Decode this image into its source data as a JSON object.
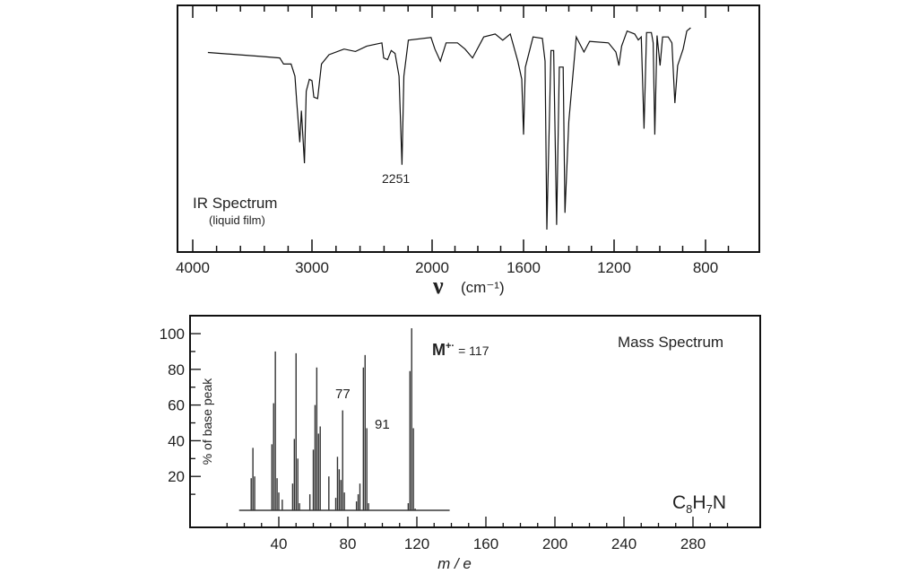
{
  "chart_data": [
    {
      "type": "line",
      "title": "IR Spectrum",
      "subtitle": "(liquid film)",
      "xlabel_symbol": "ν",
      "xlabel_unit": "(cm⁻¹)",
      "xlim": [
        4000,
        600
      ],
      "x_ticks": [
        4000,
        3000,
        2000,
        1600,
        1200,
        800
      ],
      "annotations": [
        {
          "text": "2251",
          "x": 2251
        }
      ],
      "grid": false,
      "series": [
        {
          "points": [
            [
              3873,
              80.9
            ],
            [
              3429,
              79.3
            ],
            [
              3270,
              78.7
            ],
            [
              3238,
              76.2
            ],
            [
              3175,
              76.2
            ],
            [
              3143,
              71.3
            ],
            [
              3127,
              60.4
            ],
            [
              3102,
              44.5
            ],
            [
              3089,
              57.3
            ],
            [
              3063,
              36.0
            ],
            [
              3048,
              65.2
            ],
            [
              3022,
              70.0
            ],
            [
              3000,
              69.5
            ],
            [
              2984,
              62.8
            ],
            [
              2953,
              62.2
            ],
            [
              2921,
              76.2
            ],
            [
              2858,
              80.0
            ],
            [
              2733,
              82.3
            ],
            [
              2638,
              81.3
            ],
            [
              2544,
              83.5
            ],
            [
              2418,
              84.8
            ],
            [
              2403,
              78.7
            ],
            [
              2371,
              78.0
            ],
            [
              2340,
              81.7
            ],
            [
              2308,
              80.5
            ],
            [
              2275,
              71.3
            ],
            [
              2251,
              35.4
            ],
            [
              2235,
              71.3
            ],
            [
              2198,
              85.9
            ],
            [
              2009,
              87.0
            ],
            [
              1988,
              82.3
            ],
            [
              1964,
              77.4
            ],
            [
              1939,
              84.8
            ],
            [
              1889,
              84.8
            ],
            [
              1856,
              82.3
            ],
            [
              1823,
              78.7
            ],
            [
              1774,
              87.2
            ],
            [
              1724,
              88.4
            ],
            [
              1691,
              85.9
            ],
            [
              1658,
              88.4
            ],
            [
              1625,
              77.4
            ],
            [
              1608,
              70.1
            ],
            [
              1600,
              47.6
            ],
            [
              1592,
              74.9
            ],
            [
              1558,
              87.2
            ],
            [
              1517,
              86.6
            ],
            [
              1505,
              77.4
            ],
            [
              1497,
              9.1
            ],
            [
              1479,
              81.7
            ],
            [
              1467,
              81.7
            ],
            [
              1454,
              11.0
            ],
            [
              1442,
              75.0
            ],
            [
              1425,
              75.0
            ],
            [
              1417,
              15.9
            ],
            [
              1400,
              53.0
            ],
            [
              1367,
              87.2
            ],
            [
              1333,
              81.1
            ],
            [
              1308,
              85.4
            ],
            [
              1225,
              84.8
            ],
            [
              1192,
              81.1
            ],
            [
              1179,
              75.6
            ],
            [
              1167,
              83.5
            ],
            [
              1143,
              89.6
            ],
            [
              1110,
              88.4
            ],
            [
              1094,
              86.0
            ],
            [
              1081,
              87.2
            ],
            [
              1069,
              50.0
            ],
            [
              1058,
              89.0
            ],
            [
              1037,
              89.0
            ],
            [
              1029,
              84.8
            ],
            [
              1022,
              47.6
            ],
            [
              1012,
              87.8
            ],
            [
              999,
              75.6
            ],
            [
              988,
              87.2
            ],
            [
              963,
              87.2
            ],
            [
              947,
              84.8
            ],
            [
              934,
              60.4
            ],
            [
              922,
              75.6
            ],
            [
              898,
              82.3
            ],
            [
              882,
              89.6
            ],
            [
              865,
              90.9
            ]
          ]
        }
      ]
    },
    {
      "type": "bar",
      "title": "Mass Spectrum",
      "xlabel": "m / e",
      "ylabel": "% of base peak",
      "xlim": [
        0,
        310
      ],
      "ylim": [
        0,
        110
      ],
      "x_ticks": [
        40,
        80,
        120,
        160,
        200,
        240,
        280
      ],
      "y_ticks": [
        20,
        40,
        60,
        80,
        100
      ],
      "molecular_ion": {
        "label": "M",
        "superscript": "+·",
        "text": "= 117"
      },
      "formula": {
        "C": "C",
        "c_sub": "8",
        "H": "H",
        "h_sub": "7",
        "N": "N"
      },
      "annotations": [
        {
          "text": "77",
          "x": 77
        },
        {
          "text": "91",
          "x": 91
        }
      ],
      "peaks": [
        [
          24,
          19
        ],
        [
          25,
          36
        ],
        [
          26,
          20
        ],
        [
          36,
          38
        ],
        [
          37,
          61
        ],
        [
          38,
          90
        ],
        [
          39,
          19
        ],
        [
          40,
          11
        ],
        [
          42,
          7
        ],
        [
          48,
          16
        ],
        [
          49,
          41
        ],
        [
          50,
          89
        ],
        [
          51,
          30
        ],
        [
          52,
          5
        ],
        [
          58,
          10
        ],
        [
          60,
          35
        ],
        [
          61,
          60
        ],
        [
          62,
          81
        ],
        [
          63,
          44
        ],
        [
          64,
          48
        ],
        [
          69,
          20
        ],
        [
          73,
          8
        ],
        [
          74,
          31
        ],
        [
          75,
          24
        ],
        [
          76,
          18
        ],
        [
          77,
          57
        ],
        [
          78,
          11
        ],
        [
          85,
          6
        ],
        [
          86,
          10
        ],
        [
          87,
          16
        ],
        [
          89,
          81
        ],
        [
          90,
          88
        ],
        [
          91,
          47
        ],
        [
          92,
          5
        ],
        [
          109,
          1
        ],
        [
          115,
          5
        ],
        [
          116,
          79
        ],
        [
          117,
          103
        ],
        [
          118,
          47
        ],
        [
          119,
          2
        ]
      ]
    }
  ]
}
